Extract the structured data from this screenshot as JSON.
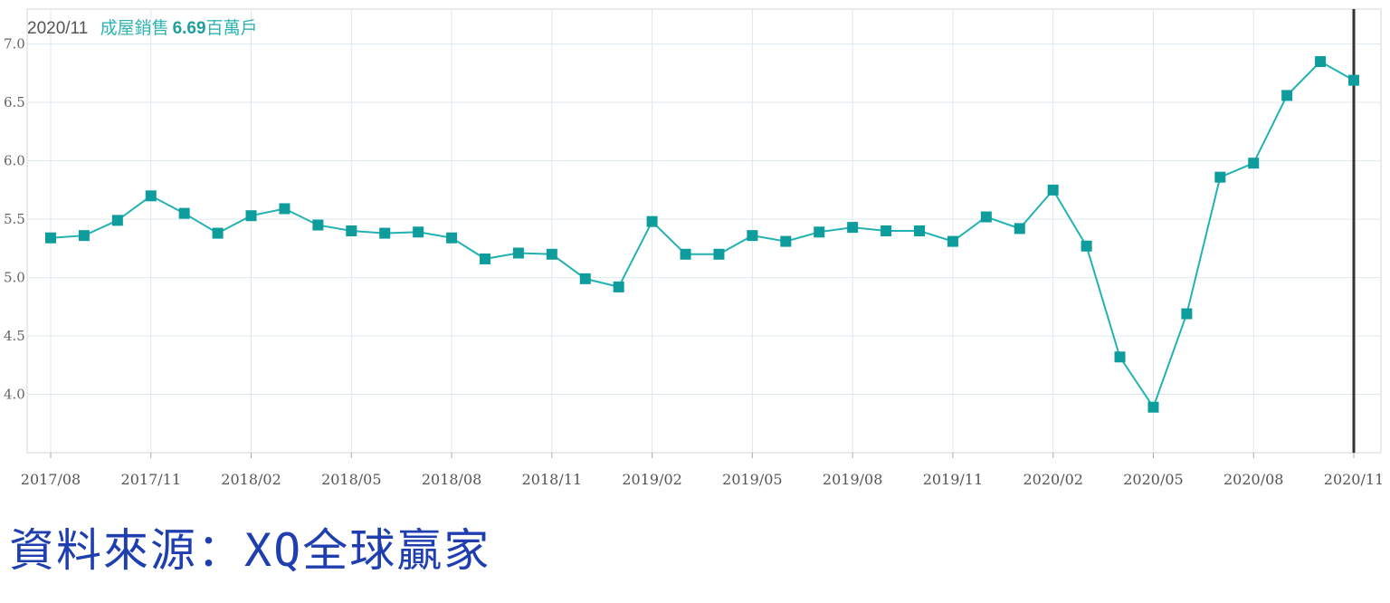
{
  "header": {
    "date": "2020/11",
    "label": "成屋銷售",
    "value": "6.69",
    "unit": "百萬戶"
  },
  "source": "資料來源：XQ全球贏家",
  "colors": {
    "line": "#22b2b2",
    "marker": "#0e9c9c",
    "grid": "#dde8ee",
    "cursor": "#333333",
    "source_text": "#1f3fb0"
  },
  "chart_data": {
    "type": "line",
    "x": [
      "2017/08",
      "2017/09",
      "2017/10",
      "2017/11",
      "2017/12",
      "2018/01",
      "2018/02",
      "2018/03",
      "2018/04",
      "2018/05",
      "2018/06",
      "2018/07",
      "2018/08",
      "2018/09",
      "2018/10",
      "2018/11",
      "2018/12",
      "2019/01",
      "2019/02",
      "2019/03",
      "2019/04",
      "2019/05",
      "2019/06",
      "2019/07",
      "2019/08",
      "2019/09",
      "2019/10",
      "2019/11",
      "2019/12",
      "2020/01",
      "2020/02",
      "2020/03",
      "2020/04",
      "2020/05",
      "2020/06",
      "2020/07",
      "2020/08",
      "2020/09",
      "2020/10",
      "2020/11"
    ],
    "series": [
      {
        "values": [
          5.34,
          5.36,
          5.49,
          5.7,
          5.55,
          5.38,
          5.53,
          5.59,
          5.45,
          5.4,
          5.38,
          5.39,
          5.34,
          5.16,
          5.21,
          5.2,
          4.99,
          4.92,
          5.48,
          5.2,
          5.2,
          5.36,
          5.31,
          5.39,
          5.43,
          5.4,
          5.4,
          5.31,
          5.52,
          5.42,
          5.75,
          5.27,
          4.32,
          3.89,
          4.69,
          5.86,
          5.98,
          6.56,
          6.85,
          6.69
        ]
      }
    ],
    "xticks": [
      "2017/08",
      "2017/11",
      "2018/02",
      "2018/05",
      "2018/08",
      "2018/11",
      "2019/02",
      "2019/05",
      "2019/08",
      "2019/11",
      "2020/02",
      "2020/05",
      "2020/08",
      "2020/11"
    ],
    "yticks": [
      "4.0",
      "4.5",
      "5.0",
      "5.5",
      "6.0",
      "6.5",
      "7.0"
    ],
    "ylim": [
      3.5,
      7.3
    ],
    "grid": true,
    "legend": "none",
    "highlight": "2020/11"
  }
}
